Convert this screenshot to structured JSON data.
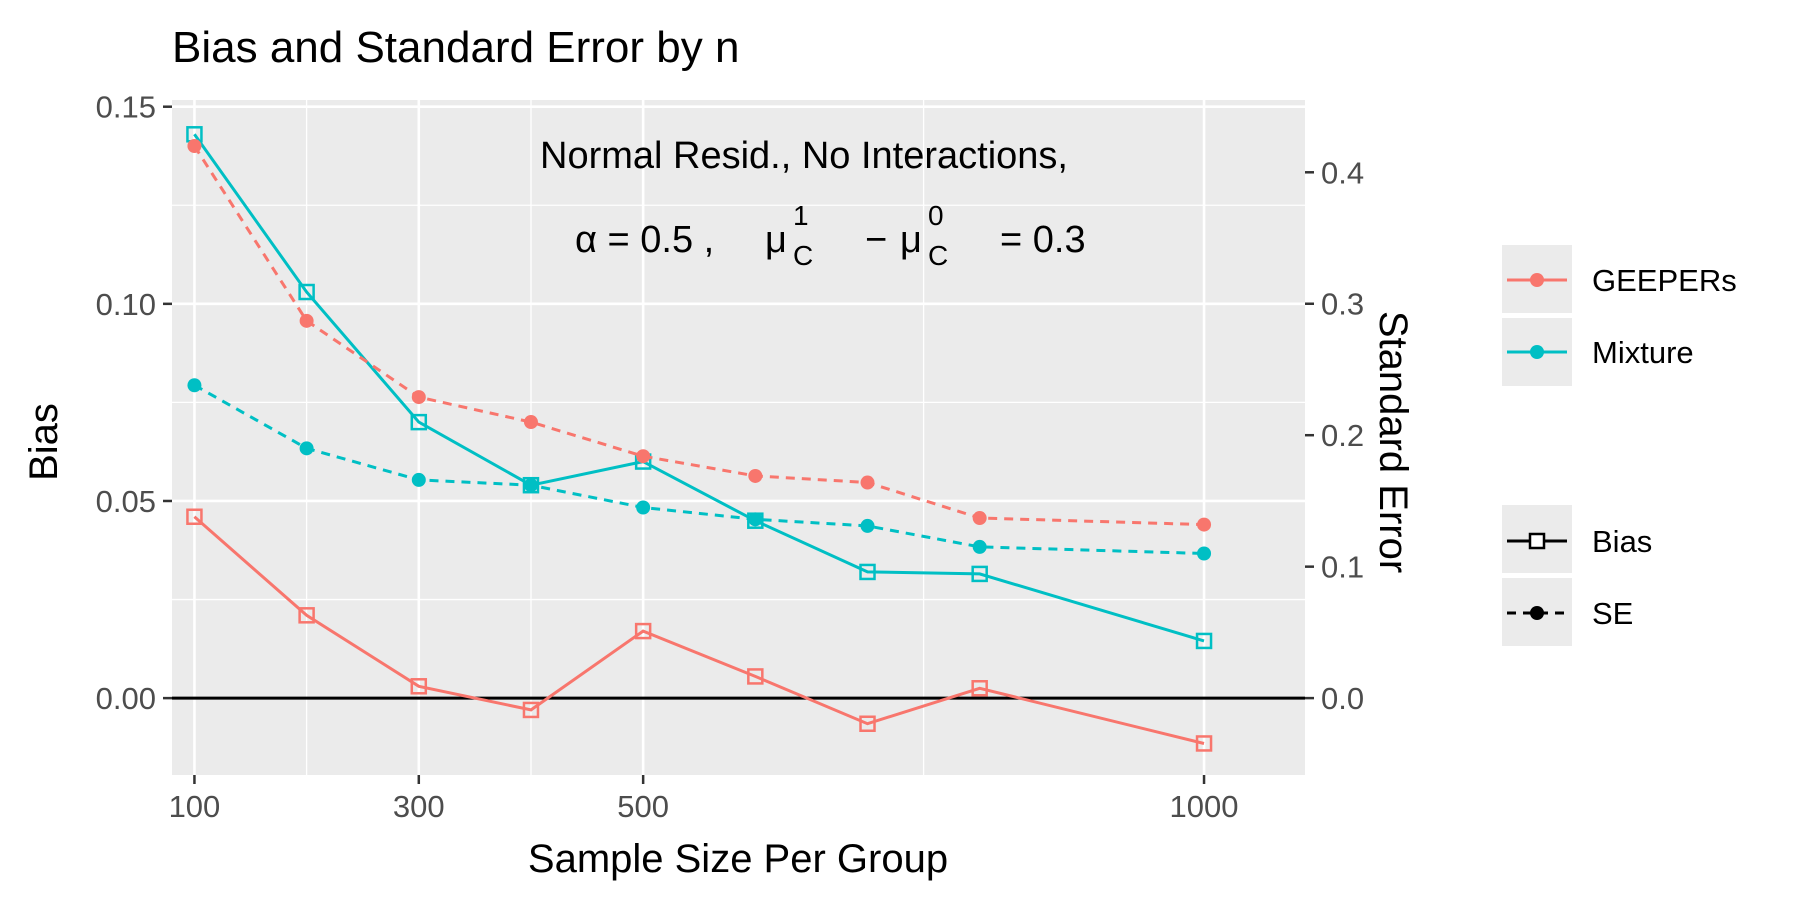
{
  "chart_data": {
    "type": "line",
    "title": "Bias and Standard Error by n",
    "xlabel": "Sample Size Per Group",
    "ylabel": "Bias",
    "y2label": "Standard Error",
    "xlim": [
      80,
      1090
    ],
    "ylim": [
      -0.0195,
      0.1517
    ],
    "y2lim": [
      -0.0585,
      0.455
    ],
    "x_ticks": [
      100,
      300,
      500,
      1000
    ],
    "y_ticks": [
      0.0,
      0.05,
      0.1,
      0.15
    ],
    "y_tick_labels": [
      "0.00",
      "0.05",
      "0.10",
      "0.15"
    ],
    "y2_ticks": [
      0.0,
      0.1,
      0.2,
      0.3,
      0.4
    ],
    "y2_tick_labels": [
      "0.0",
      "0.1",
      "0.2",
      "0.3",
      "0.4"
    ],
    "x": [
      100,
      200,
      300,
      400,
      500,
      600,
      700,
      800,
      1000
    ],
    "annotation": {
      "line1": "Normal Resid., No Interactions,",
      "alpha_expr": "α = 0.5 ,",
      "mu_expr": "μ",
      "sup1": "1",
      "sup0": "0",
      "sub": "C",
      "minus": "−",
      "rhs": "= 0.3"
    },
    "series": [
      {
        "name": "GEEPERs",
        "measure": "Bias",
        "color": "#F8766D",
        "values": [
          0.046,
          0.021,
          0.003,
          -0.003,
          0.017,
          0.0055,
          -0.0065,
          0.0025,
          -0.0115
        ]
      },
      {
        "name": "Mixture",
        "measure": "Bias",
        "color": "#00BFC4",
        "values": [
          0.143,
          0.103,
          0.07,
          0.054,
          0.06,
          0.045,
          0.032,
          0.0315,
          0.0145
        ]
      },
      {
        "name": "GEEPERs",
        "measure": "SE",
        "color": "#F8766D",
        "values": [
          0.42,
          0.287,
          0.229,
          0.21,
          0.184,
          0.169,
          0.164,
          0.137,
          0.132
        ]
      },
      {
        "name": "Mixture",
        "measure": "SE",
        "color": "#00BFC4",
        "values": [
          0.238,
          0.19,
          0.166,
          0.162,
          0.145,
          0.136,
          0.131,
          0.115,
          0.11
        ]
      }
    ],
    "legend": {
      "placement": "right",
      "method_items": [
        {
          "label": "GEEPERs",
          "color": "#F8766D"
        },
        {
          "label": "Mixture",
          "color": "#00BFC4"
        }
      ],
      "measure_items": [
        {
          "label": "Bias",
          "linestyle": "solid",
          "marker": "open-square"
        },
        {
          "label": "SE",
          "linestyle": "dashed",
          "marker": "filled-circle"
        }
      ]
    },
    "grid": true,
    "zero_line": true
  }
}
